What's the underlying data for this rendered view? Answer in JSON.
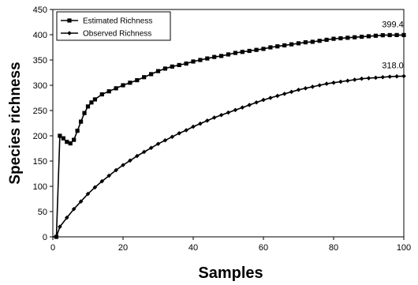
{
  "chart_data": {
    "type": "line",
    "xlabel": "Samples",
    "ylabel": "Species richness",
    "xlim": [
      0,
      100
    ],
    "ylim": [
      0,
      450
    ],
    "xticks": [
      0,
      20,
      40,
      60,
      80,
      100
    ],
    "yticks": [
      0,
      50,
      100,
      150,
      200,
      250,
      300,
      350,
      400,
      450
    ],
    "grid": false,
    "legend_position": "top-left",
    "series": [
      {
        "name": "Estimated Richness",
        "marker": "square",
        "end_label": "399.4",
        "x": [
          1,
          2,
          3,
          4,
          5,
          6,
          7,
          8,
          9,
          10,
          11,
          12,
          14,
          16,
          18,
          20,
          22,
          24,
          26,
          28,
          30,
          32,
          34,
          36,
          38,
          40,
          42,
          44,
          46,
          48,
          50,
          52,
          54,
          56,
          58,
          60,
          62,
          64,
          66,
          68,
          70,
          72,
          74,
          76,
          78,
          80,
          82,
          84,
          86,
          88,
          90,
          92,
          94,
          96,
          98,
          100
        ],
        "values": [
          0,
          200,
          195,
          188,
          185,
          192,
          210,
          228,
          245,
          258,
          266,
          272,
          282,
          288,
          294,
          300,
          305,
          310,
          316,
          322,
          328,
          333,
          337,
          340,
          343,
          347,
          350,
          353,
          356,
          358,
          361,
          364,
          366,
          368,
          370,
          372,
          375,
          377,
          379,
          381,
          383,
          385,
          386,
          388,
          390,
          392,
          393,
          394,
          395,
          396,
          397,
          398,
          399,
          399.3,
          399.4,
          399.4
        ]
      },
      {
        "name": "Observed Richness",
        "marker": "diamond",
        "end_label": "318.0",
        "x": [
          1,
          2,
          4,
          6,
          8,
          10,
          12,
          14,
          16,
          18,
          20,
          22,
          24,
          26,
          28,
          30,
          32,
          34,
          36,
          38,
          40,
          42,
          44,
          46,
          48,
          50,
          52,
          54,
          56,
          58,
          60,
          62,
          64,
          66,
          68,
          70,
          72,
          74,
          76,
          78,
          80,
          82,
          84,
          86,
          88,
          90,
          92,
          94,
          96,
          98,
          100
        ],
        "values": [
          0,
          20,
          38,
          55,
          70,
          85,
          98,
          110,
          121,
          132,
          142,
          151,
          160,
          168,
          176,
          184,
          191,
          198,
          205,
          211,
          218,
          224,
          230,
          236,
          241,
          246,
          251,
          256,
          261,
          266,
          271,
          275,
          279,
          283,
          287,
          291,
          294,
          297,
          300,
          303,
          305,
          307,
          309,
          311,
          313,
          314,
          315,
          316,
          317,
          317.6,
          318.0
        ]
      }
    ]
  }
}
